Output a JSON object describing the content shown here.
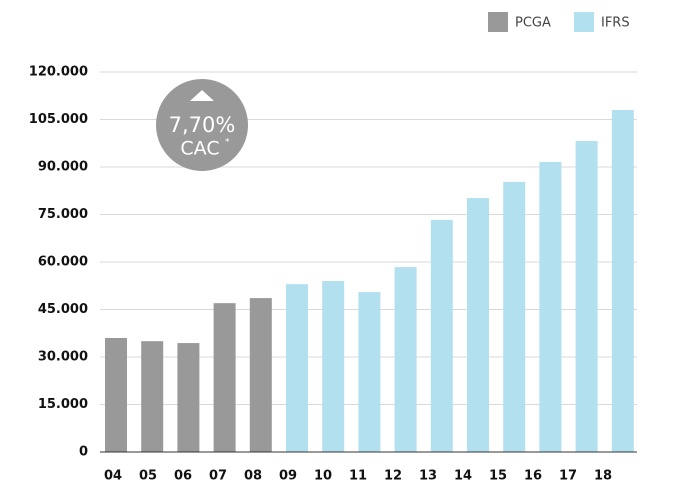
{
  "chart_data": {
    "type": "bar",
    "categories": [
      "04",
      "05",
      "06",
      "07",
      "08",
      "09",
      "10",
      "11",
      "12",
      "13",
      "14",
      "15",
      "16",
      "17",
      "18"
    ],
    "series": [
      {
        "name": "PCGA",
        "color": "#999999",
        "values": [
          36000,
          35000,
          34400,
          47000,
          48600,
          null,
          null,
          null,
          null,
          null,
          null,
          null,
          null,
          null,
          null
        ]
      },
      {
        "name": "IFRS",
        "color": "#b3e0ef",
        "values": [
          null,
          null,
          null,
          null,
          null,
          53000,
          54000,
          50500,
          58400,
          73300,
          80200,
          85300,
          91600,
          98200,
          108000
        ]
      }
    ],
    "ylim": [
      0,
      120000
    ],
    "yticks": [
      0,
      {
        "value": 15000,
        "label": "15.000"
      },
      {
        "value": 30000,
        "label": "30.000"
      },
      {
        "value": 45000,
        "label": "45.000"
      },
      {
        "value": 60000,
        "label": "60.000"
      },
      {
        "value": 75000,
        "label": "75.000"
      },
      {
        "value": 90000,
        "label": "90.000"
      },
      {
        "value": 105000,
        "label": "105.000"
      },
      {
        "value": 120000,
        "label": "120.000"
      }
    ],
    "grid": true,
    "legend": "top-right",
    "annotation": {
      "value": "7,70%",
      "label": "CAC",
      "mark": "*"
    }
  }
}
